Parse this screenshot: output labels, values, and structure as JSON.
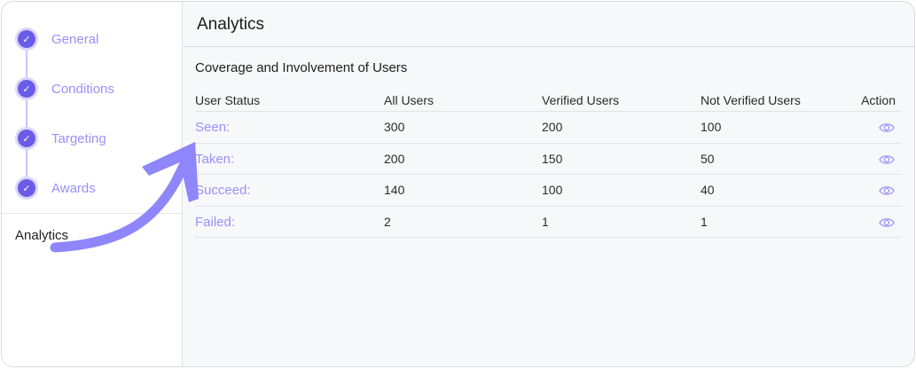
{
  "sidebar": {
    "steps": [
      {
        "label": "General",
        "done": true
      },
      {
        "label": "Conditions",
        "done": true
      },
      {
        "label": "Targeting",
        "done": true
      },
      {
        "label": "Awards",
        "done": true
      }
    ],
    "current": "Analytics"
  },
  "header": {
    "title": "Analytics"
  },
  "section": {
    "title": "Coverage and Involvement of Users"
  },
  "table": {
    "columns": [
      "User Status",
      "All Users",
      "Verified Users",
      "Not Verified Users",
      "Action"
    ],
    "rows": [
      {
        "status": "Seen:",
        "all": "300",
        "verified": "200",
        "not_verified": "100"
      },
      {
        "status": "Taken:",
        "all": "200",
        "verified": "150",
        "not_verified": "50"
      },
      {
        "status": "Succeed:",
        "all": "140",
        "verified": "100",
        "not_verified": "40"
      },
      {
        "status": "Failed:",
        "all": "2",
        "verified": "1",
        "not_verified": "1"
      }
    ]
  },
  "colors": {
    "accent": "#6b5ce7",
    "link": "#9a90f8",
    "arrow": "#8f86fb"
  },
  "icons": {
    "step": "check-icon",
    "action": "eye-icon",
    "annotation": "curved-arrow-icon"
  }
}
